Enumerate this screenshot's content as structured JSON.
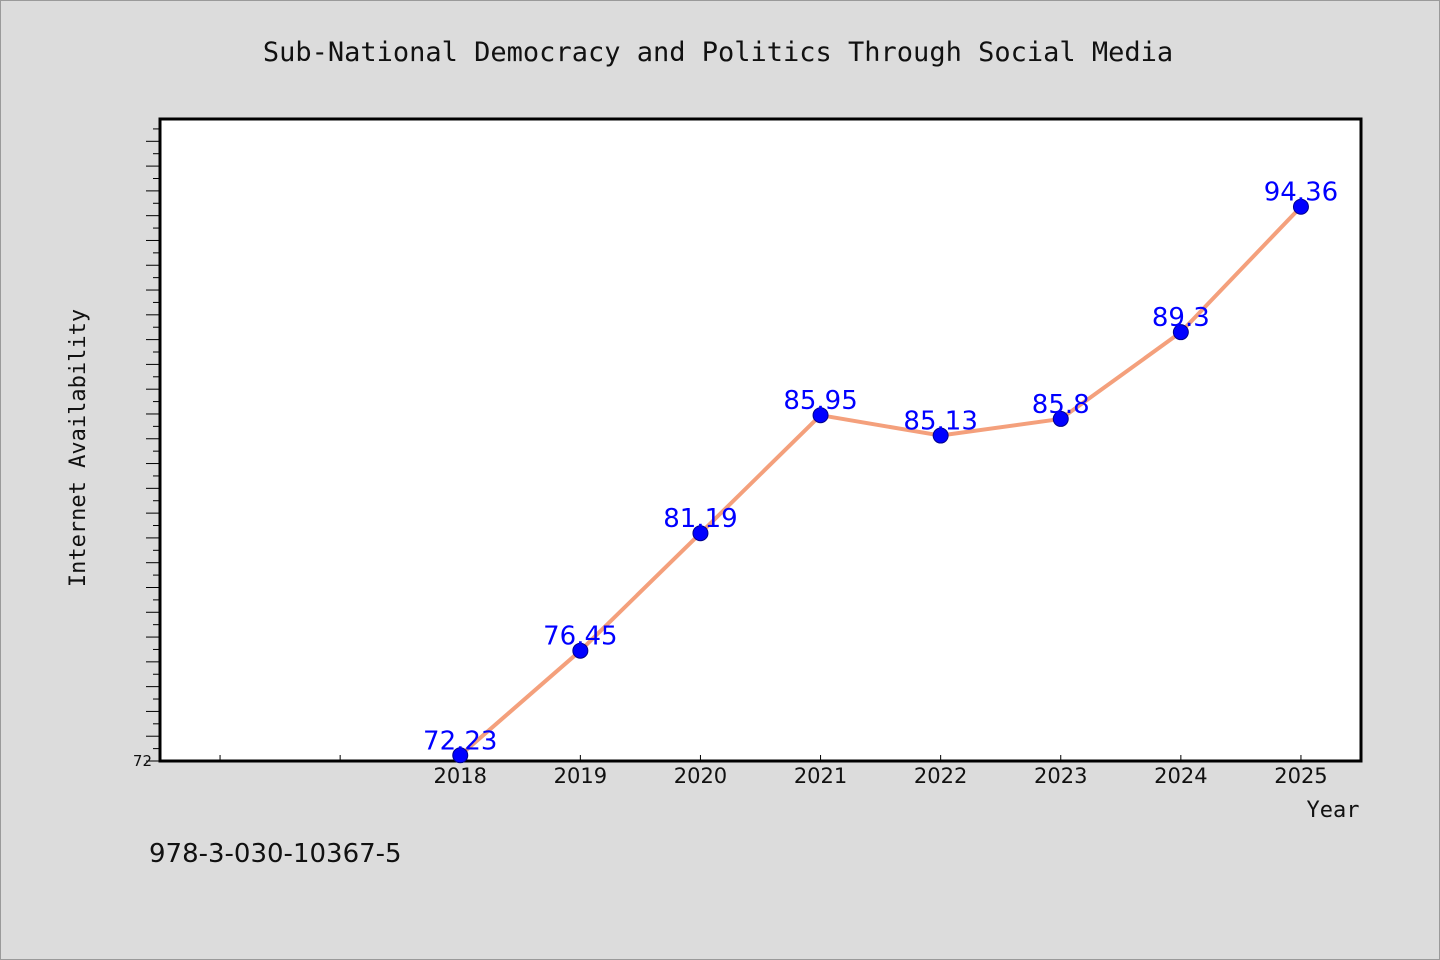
{
  "chart_data": {
    "type": "line",
    "title": "Sub-National Democracy and Politics Through Social Media",
    "xlabel": "Year",
    "ylabel": "Internet Availability",
    "x": [
      "2018",
      "2019",
      "2020",
      "2021",
      "2022",
      "2023",
      "2024",
      "2025"
    ],
    "series": [
      {
        "values": [
          72.23,
          76.45,
          81.19,
          85.95,
          85.13,
          85.8,
          89.3,
          94.36
        ],
        "labels": [
          "72.23",
          "76.45",
          "81.19",
          "85.95",
          "85.13",
          "85.8",
          "89.3",
          "94.36"
        ],
        "line_color": "#f4a07c",
        "marker_color": "#0000ff"
      }
    ],
    "ylim": [
      72,
      97.9
    ],
    "yticks_labeled": [
      "72"
    ],
    "xlim": [
      2015.5,
      2025.5
    ],
    "grid": false,
    "legend": "none",
    "background": "#dcdcdc",
    "plot_background": "#ffffff"
  },
  "footnote": "978-3-030-10367-5"
}
